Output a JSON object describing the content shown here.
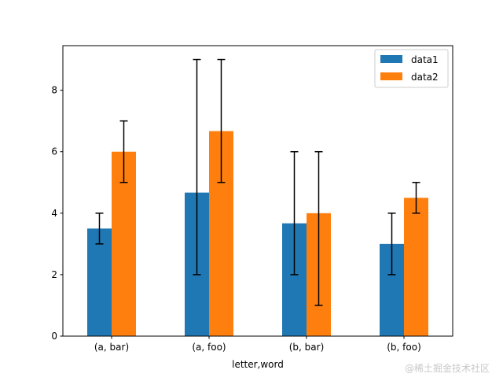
{
  "chart_data": {
    "type": "bar",
    "title": "",
    "xlabel": "letter,word",
    "ylabel": "",
    "categories": [
      "(a, bar)",
      "(a, foo)",
      "(b, bar)",
      "(b, foo)"
    ],
    "ylim": [
      0,
      9.45
    ],
    "yticks": [
      0,
      2,
      4,
      6,
      8
    ],
    "grid": false,
    "legend_position": "top-right",
    "series": [
      {
        "name": "data1",
        "color": "#1f77b4",
        "values": [
          3.5,
          4.67,
          3.67,
          3.0
        ],
        "error_bounds": [
          [
            3,
            4
          ],
          [
            2,
            9
          ],
          [
            2,
            6
          ],
          [
            2,
            4
          ]
        ]
      },
      {
        "name": "data2",
        "color": "#ff7f0e",
        "values": [
          6.0,
          6.67,
          4.0,
          4.5
        ],
        "error_bounds": [
          [
            5,
            7
          ],
          [
            5,
            9
          ],
          [
            1,
            6
          ],
          [
            4,
            5
          ]
        ]
      }
    ]
  },
  "watermark": "@稀土掘金技术社区"
}
